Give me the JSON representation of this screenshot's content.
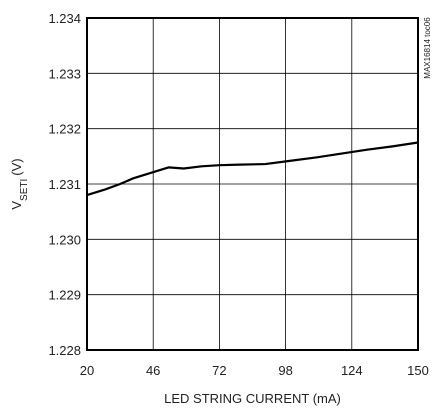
{
  "chart_data": {
    "type": "line",
    "title": "",
    "xlabel": "LED STRING CURRENT (mA)",
    "ylabel": "V",
    "ylabel_sub": "SETI",
    "ylabel_unit": "(V)",
    "xlim": [
      20,
      150
    ],
    "ylim": [
      1.228,
      1.234
    ],
    "x_ticks": [
      20,
      46,
      72,
      98,
      124,
      150
    ],
    "y_ticks": [
      1.228,
      1.229,
      1.23,
      1.231,
      1.232,
      1.233,
      1.234
    ],
    "x_tick_labels": [
      "20",
      "46",
      "72",
      "98",
      "124",
      "150"
    ],
    "y_tick_labels": [
      "1.228",
      "1.229",
      "1.230",
      "1.231",
      "1.232",
      "1.233",
      "1.234"
    ],
    "grid": true,
    "side_note": "MAX16814 toc06",
    "series": [
      {
        "x": [
          20,
          27,
          33,
          38,
          45,
          52,
          58,
          65,
          72,
          80,
          90,
          100,
          110,
          120,
          130,
          140,
          150
        ],
        "y": [
          1.2308,
          1.2309,
          1.231,
          1.2311,
          1.2312,
          1.2313,
          1.23128,
          1.23132,
          1.23134,
          1.23135,
          1.23136,
          1.23142,
          1.23148,
          1.23155,
          1.23162,
          1.23168,
          1.23175
        ]
      }
    ]
  }
}
